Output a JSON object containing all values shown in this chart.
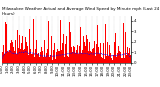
{
  "title": "Milwaukee Weather Actual and Average Wind Speed by Minute mph (Last 24 Hours)",
  "n_bars": 288,
  "bar_color": "#FF0000",
  "avg_line_color": "#0000FF",
  "background_color": "#FFFFFF",
  "plot_bg_color": "#FFFFFF",
  "grid_color": "#888888",
  "ylim": [
    0,
    4.5
  ],
  "yticks": [
    0,
    1,
    2,
    3,
    4
  ],
  "title_fontsize": 3.0,
  "tick_fontsize": 2.8,
  "seed": 99
}
